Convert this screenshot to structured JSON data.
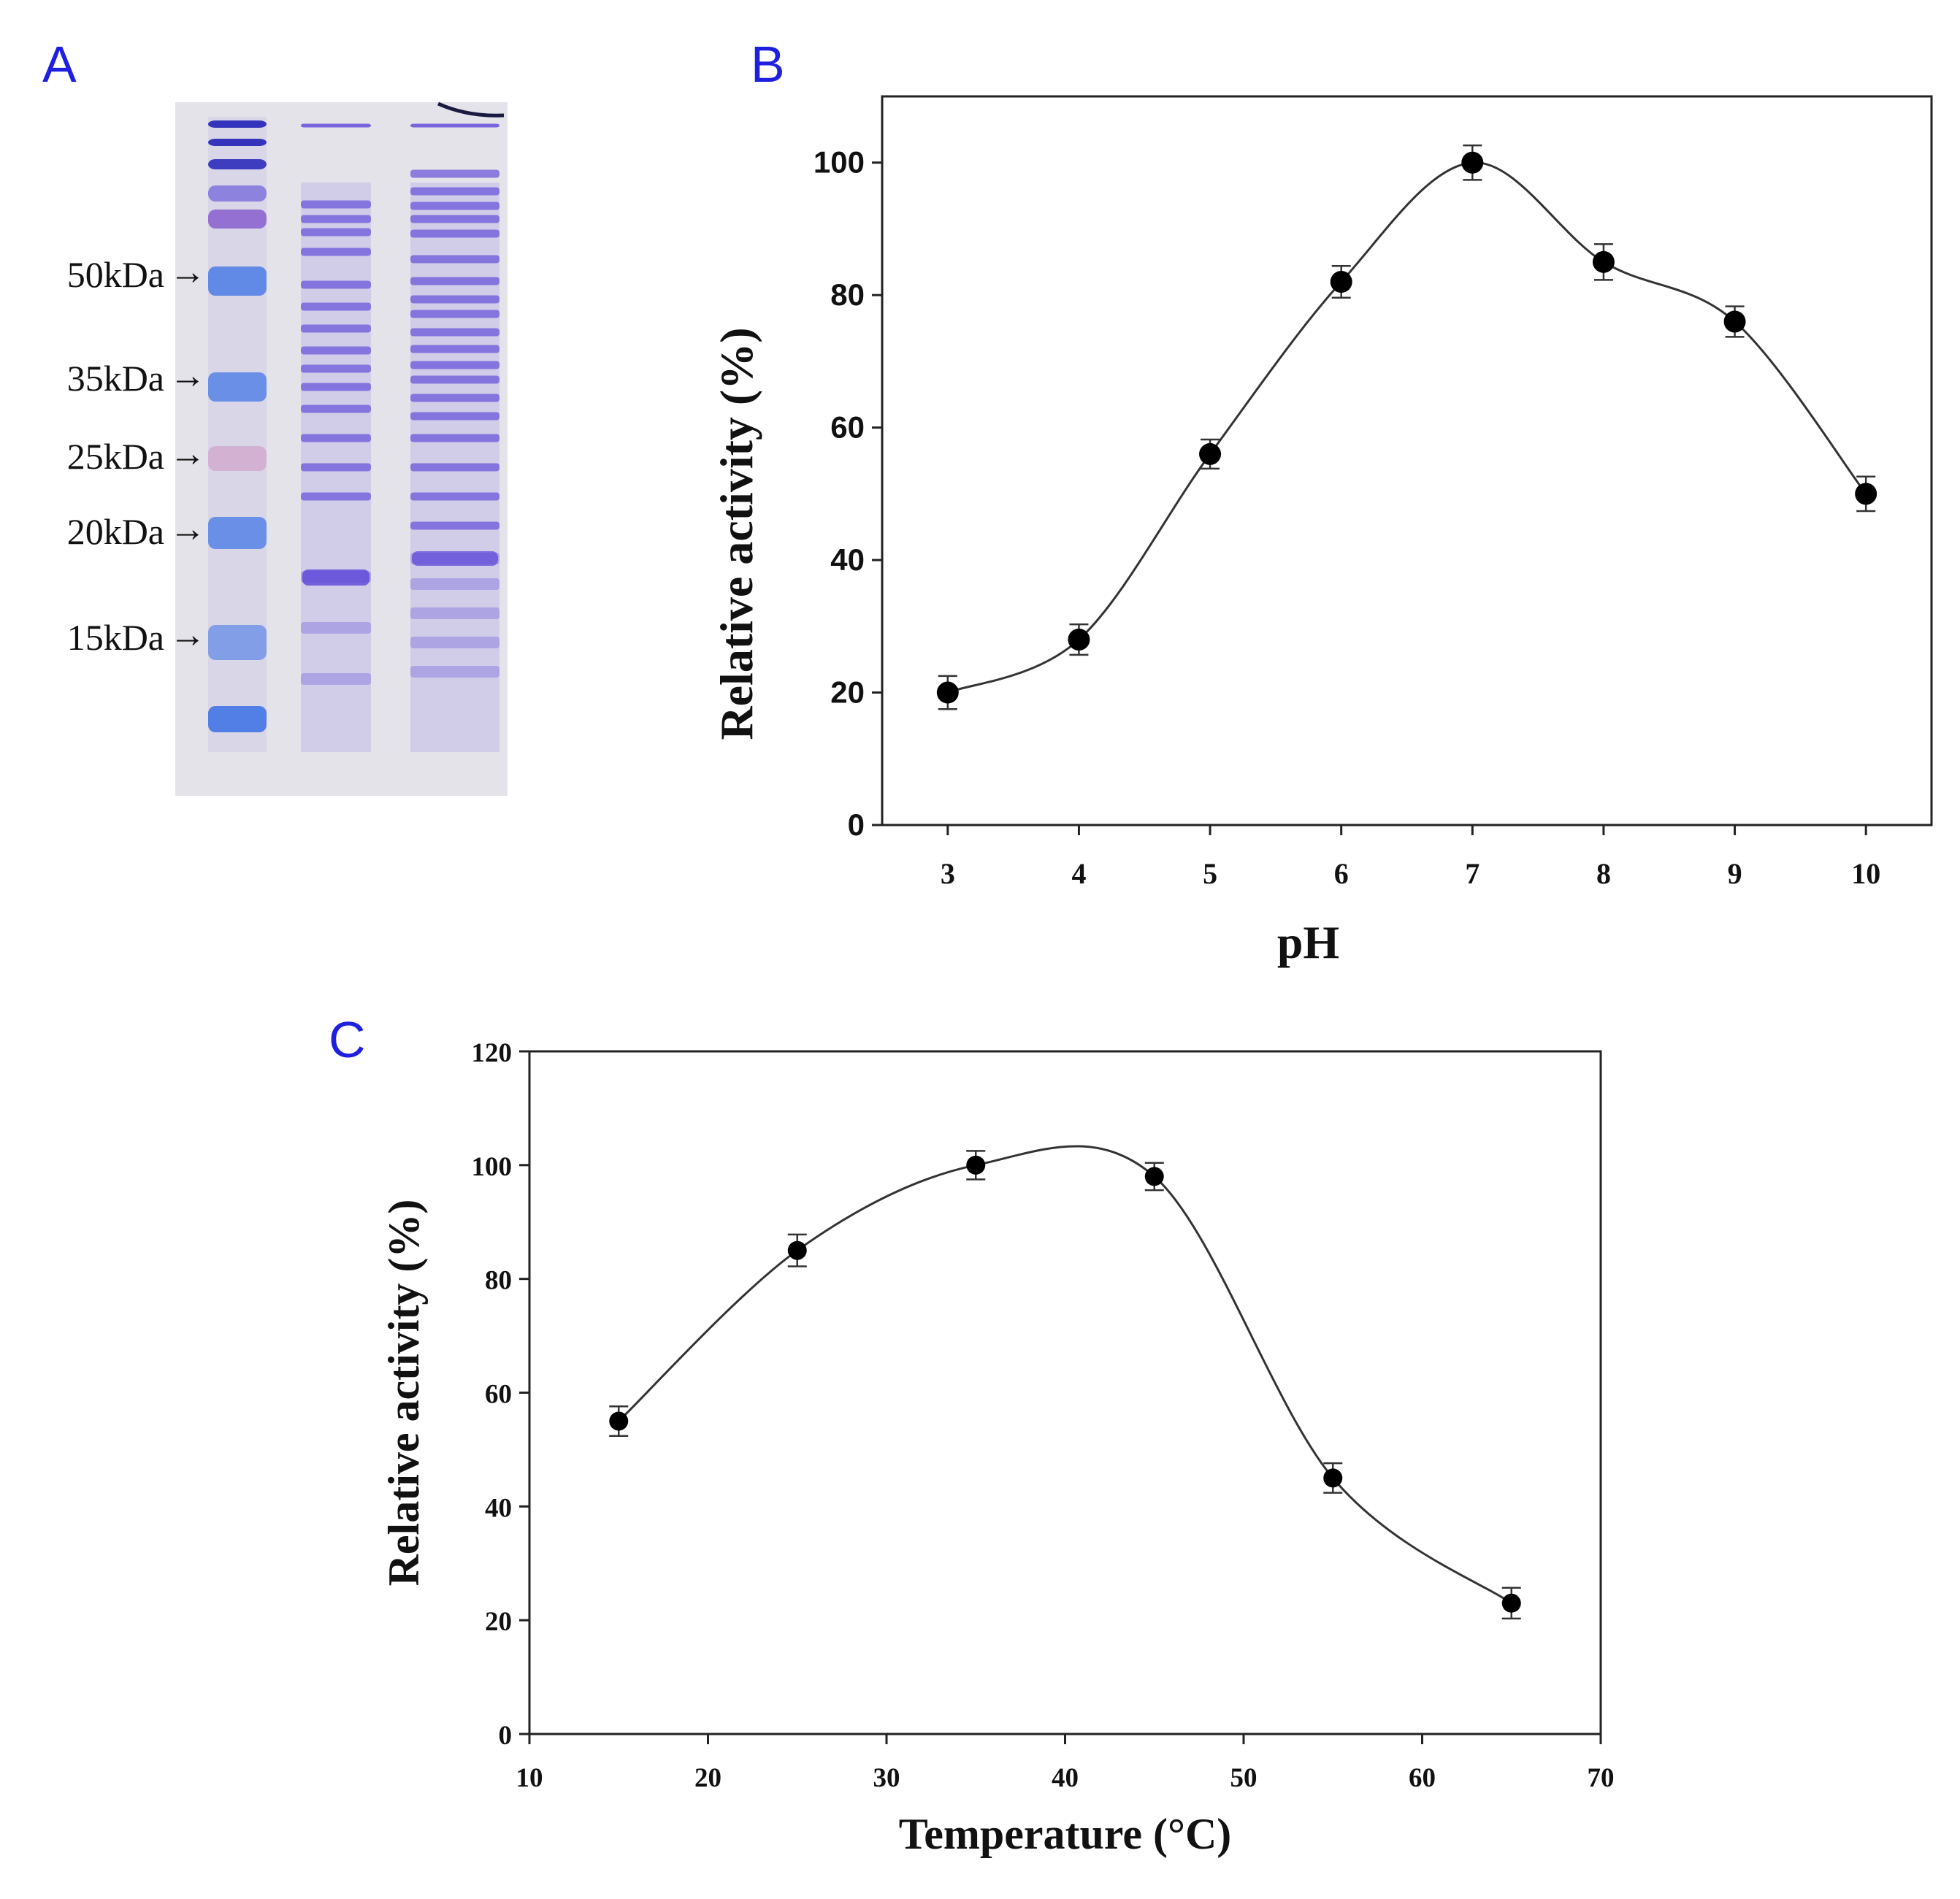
{
  "panels": {
    "a": {
      "letter": "A"
    },
    "b": {
      "letter": "B"
    },
    "c": {
      "letter": "C"
    }
  },
  "gel": {
    "markers": [
      {
        "label": "50kDa",
        "arrow": "→"
      },
      {
        "label": "35kDa",
        "arrow": "→"
      },
      {
        "label": "25kDa",
        "arrow": "→"
      },
      {
        "label": "20kDa",
        "arrow": "→"
      },
      {
        "label": "15kDa",
        "arrow": "→"
      }
    ]
  },
  "colors": {
    "panel_letter": "#1f1fe0",
    "gel_background": "#e4e3e9",
    "gel_band": "#5a45d8",
    "ladder_band": "#2f6fe8",
    "ladder_pink": "#d06aa8",
    "axis": "#222222",
    "marker_fill": "#000000"
  },
  "chart_data": [
    {
      "type": "line",
      "panel": "B",
      "title": "",
      "xlabel": "pH",
      "ylabel": "Relative activity (%)",
      "xlim": [
        2.5,
        10.5
      ],
      "ylim": [
        0,
        110
      ],
      "xticks": [
        3,
        4,
        5,
        6,
        7,
        8,
        9,
        10
      ],
      "yticks": [
        0,
        20,
        40,
        60,
        80,
        100
      ],
      "xtick_labels": [
        "3",
        "4",
        "5",
        "6",
        "7",
        "8",
        "9",
        "10"
      ],
      "ytick_labels": [
        "0",
        "20",
        "40",
        "60",
        "80",
        "100"
      ],
      "grid": false,
      "legend": "none",
      "series": [
        {
          "name": "Relative activity",
          "x": [
            3,
            4,
            5,
            6,
            7,
            8,
            9,
            10
          ],
          "y": [
            20,
            28,
            56,
            82,
            100,
            85,
            76,
            50
          ],
          "error": [
            2.5,
            2.3,
            2.2,
            2.4,
            2.6,
            2.7,
            2.3,
            2.6
          ]
        }
      ]
    },
    {
      "type": "line",
      "panel": "C",
      "title": "",
      "xlabel": "Temperature (°C)",
      "ylabel": "Relative activity (%)",
      "xlim": [
        10,
        70
      ],
      "ylim": [
        0,
        120
      ],
      "xticks": [
        10,
        20,
        30,
        40,
        50,
        60,
        70
      ],
      "yticks": [
        0,
        20,
        40,
        60,
        80,
        100,
        120
      ],
      "xtick_labels": [
        "10",
        "20",
        "30",
        "40",
        "50",
        "60",
        "70"
      ],
      "ytick_labels": [
        "0",
        "20",
        "40",
        "60",
        "80",
        "100",
        "120"
      ],
      "grid": false,
      "legend": "none",
      "series": [
        {
          "name": "Relative activity",
          "x": [
            15,
            25,
            35,
            45,
            55,
            65
          ],
          "y": [
            55,
            85,
            100,
            98,
            45,
            23
          ],
          "error": [
            2.6,
            2.8,
            2.5,
            2.4,
            2.6,
            2.7
          ]
        }
      ]
    }
  ]
}
